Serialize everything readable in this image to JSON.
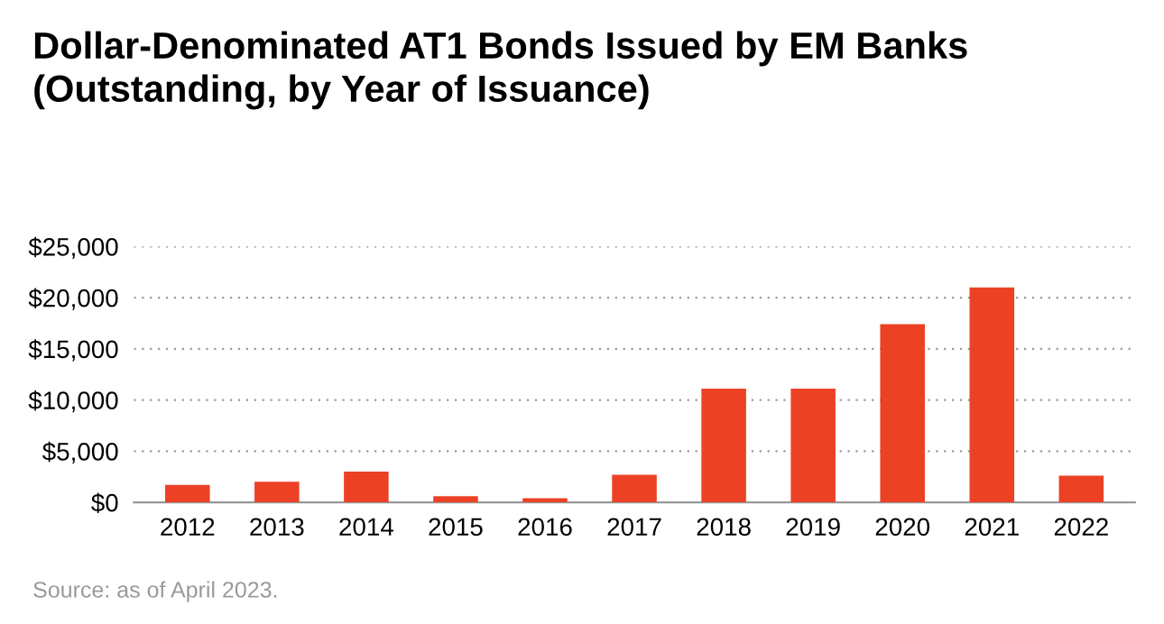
{
  "chart_data": {
    "type": "bar",
    "title": "Dollar-Denominated AT1 Bonds Issued by EM Banks\n(Outstanding, by Year of Issuance)",
    "categories": [
      "2012",
      "2013",
      "2014",
      "2015",
      "2016",
      "2017",
      "2018",
      "2019",
      "2020",
      "2021",
      "2022"
    ],
    "values": [
      1700,
      2000,
      3000,
      600,
      400,
      2700,
      11100,
      11100,
      17400,
      21000,
      2600
    ],
    "color": "#ec4125",
    "ylim": [
      0,
      25000
    ],
    "yticks": [
      {
        "value": 0,
        "label": "$0"
      },
      {
        "value": 5000,
        "label": "$5,000"
      },
      {
        "value": 10000,
        "label": "$10,000"
      },
      {
        "value": 15000,
        "label": "$15,000"
      },
      {
        "value": 20000,
        "label": "$20,000"
      },
      {
        "value": 25000,
        "label": "$25,000"
      }
    ],
    "grid": "y",
    "annotations": [
      "Source: as of April 2023."
    ]
  }
}
